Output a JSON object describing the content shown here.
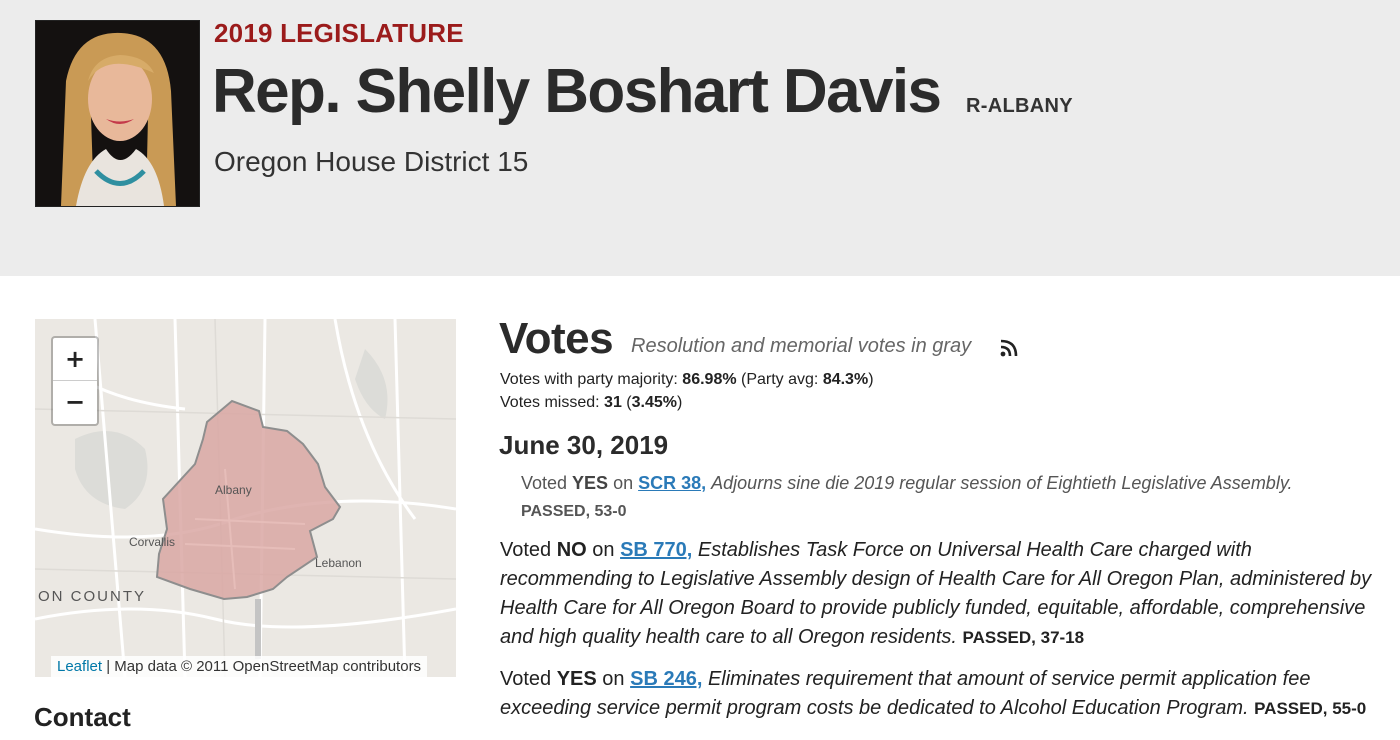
{
  "header": {
    "eyebrow": "2019 LEGISLATURE",
    "name": "Rep. Shelly Boshart Davis",
    "party": "R-ALBANY",
    "district": "Oregon House District 15"
  },
  "map": {
    "zoom_in": "+",
    "zoom_out": "−",
    "labels": {
      "albany": "Albany",
      "corvallis": "Corvallis",
      "lebanon": "Lebanon",
      "county": "ON COUNTY"
    },
    "attribution_link": "Leaflet",
    "attribution_text": " | Map data © 2011 OpenStreetMap contributors",
    "district_color": "#d9a7a3"
  },
  "sections": {
    "contact": "Contact"
  },
  "votes": {
    "title": "Votes",
    "note": "Resolution and memorial votes in gray",
    "party_majority_label": "Votes with party majority: ",
    "party_majority_value": "86.98%",
    "party_avg_label": " (Party avg: ",
    "party_avg_value": "84.3%",
    "party_avg_close": ")",
    "missed_label": "Votes missed: ",
    "missed_value": "31",
    "missed_pct_open": " (",
    "missed_pct": "3.45%",
    "missed_pct_close": ")",
    "date": "June 30, 2019",
    "items": [
      {
        "voted": "Voted ",
        "direction": "YES",
        "on": " on ",
        "bill": "SCR 38,",
        "description": "Adjourns sine die 2019 regular session of Eightieth Legislative Assembly.",
        "result": "PASSED, 53-0"
      },
      {
        "voted": "Voted ",
        "direction": "NO",
        "on": " on ",
        "bill": "SB 770,",
        "description": "Establishes Task Force on Universal Health Care charged with recommending to Legislative Assembly design of Health Care for All Oregon Plan, administered by Health Care for All Oregon Board to provide publicly funded, equitable, affordable, comprehensive and high quality health care to all Oregon residents.",
        "result": "PASSED, 37-18"
      },
      {
        "voted": "Voted ",
        "direction": "YES",
        "on": " on ",
        "bill": "SB 246,",
        "description": "Eliminates requirement that amount of service permit application fee exceeding service permit program costs be dedicated to Alcohol Education Program.",
        "result": "PASSED, 55-0"
      }
    ]
  },
  "colors": {
    "accent_red": "#9b1b1b",
    "link_blue": "#2a7ab8",
    "header_bg": "#ececec"
  }
}
